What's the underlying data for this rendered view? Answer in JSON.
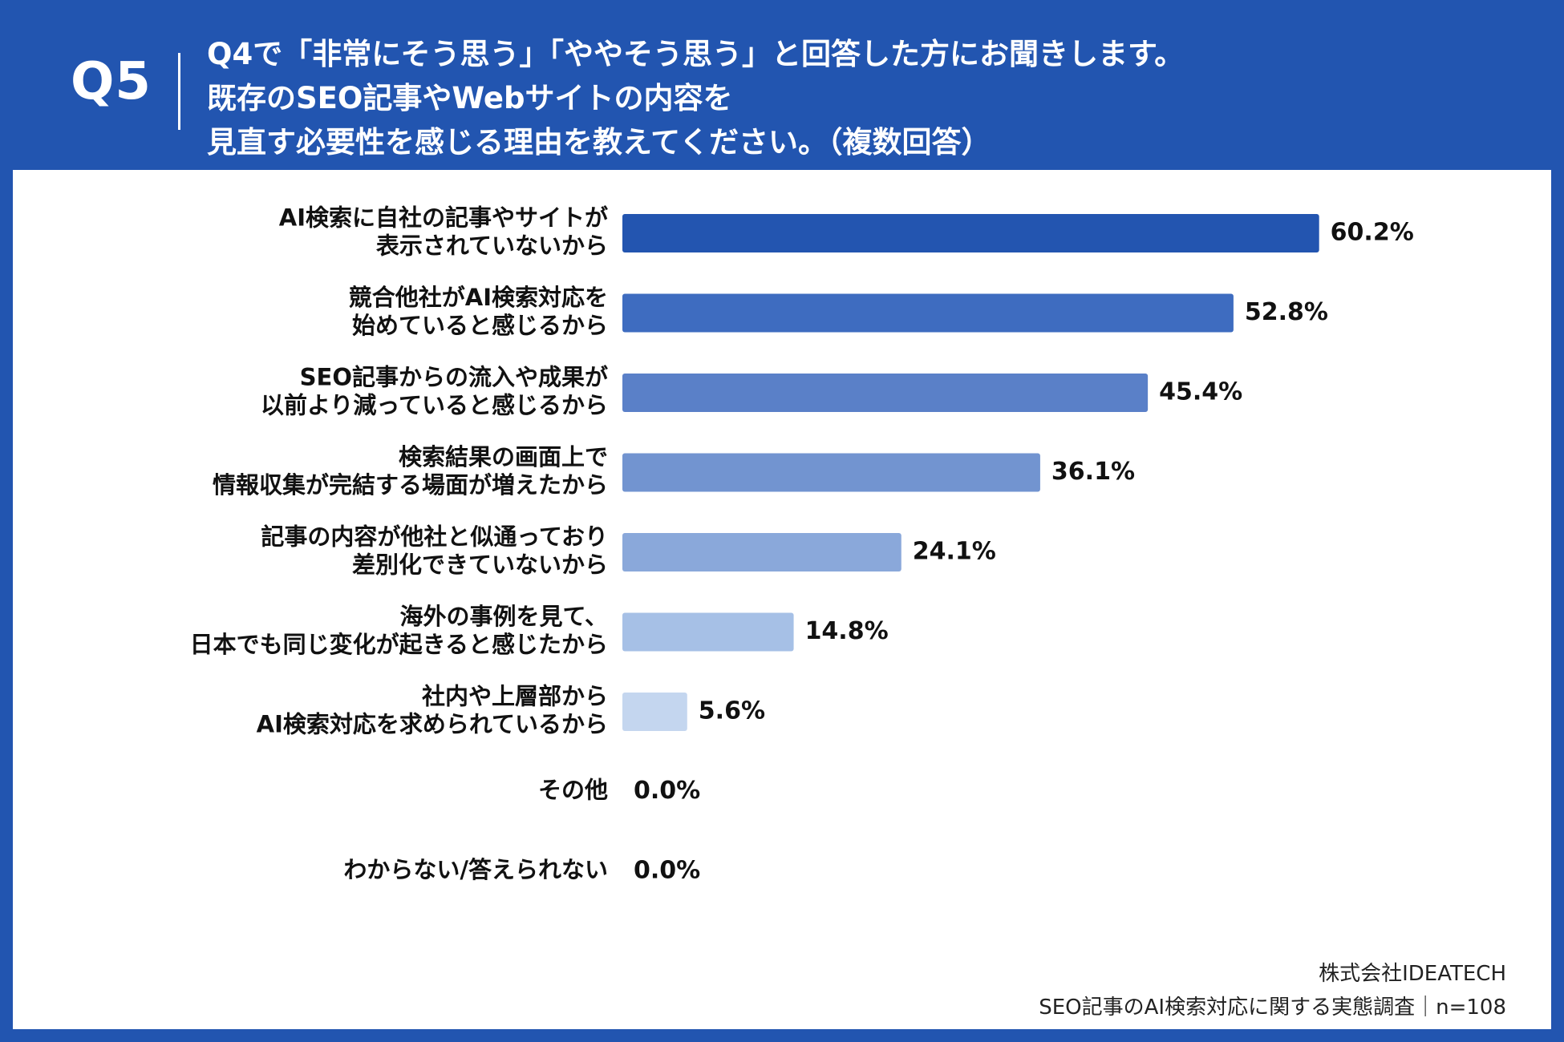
{
  "header": {
    "question_number": "Q5",
    "question_lines": [
      "Q4で「非常にそう思う」「ややそう思う」と回答した方にお聞きします。",
      "既存のSEO記事やWebサイトの内容を",
      "見直す必要性を感じる理由を教えてください。（複数回答）"
    ]
  },
  "colors": {
    "header_bg": "#2255b0",
    "panel_bg": "#ffffff",
    "bar_shades": [
      "#2355b0",
      "#3e6cc0",
      "#5a80c8",
      "#7294d0",
      "#8aa8da",
      "#a6c0e6",
      "#c4d6ef",
      "#c4d6ef",
      "#c4d6ef"
    ]
  },
  "chart_data": {
    "type": "bar",
    "orientation": "horizontal",
    "categories": [
      [
        "AI検索に自社の記事やサイトが",
        "表示されていないから"
      ],
      [
        "競合他社がAI検索対応を",
        "始めていると感じるから"
      ],
      [
        "SEO記事からの流入や成果が",
        "以前より減っていると感じるから"
      ],
      [
        "検索結果の画面上で",
        "情報収集が完結する場面が増えたから"
      ],
      [
        "記事の内容が他社と似通っており",
        "差別化できていないから"
      ],
      [
        "海外の事例を見て、",
        "日本でも同じ変化が起きると感じたから"
      ],
      [
        "社内や上層部から",
        "AI検索対応を求められているから"
      ],
      [
        "その他"
      ],
      [
        "わからない/答えられない"
      ]
    ],
    "values": [
      60.2,
      52.8,
      45.4,
      36.1,
      24.1,
      14.8,
      5.6,
      0.0,
      0.0
    ],
    "value_labels": [
      "60.2%",
      "52.8%",
      "45.4%",
      "36.1%",
      "24.1%",
      "14.8%",
      "5.6%",
      "0.0%",
      "0.0%"
    ],
    "unit": "%",
    "xlim": [
      0,
      100
    ],
    "grid": false,
    "legend": "none"
  },
  "footer": {
    "company": "株式会社IDEATECH",
    "survey": "SEO記事のAI検索対応に関する実態調査｜n=108"
  }
}
